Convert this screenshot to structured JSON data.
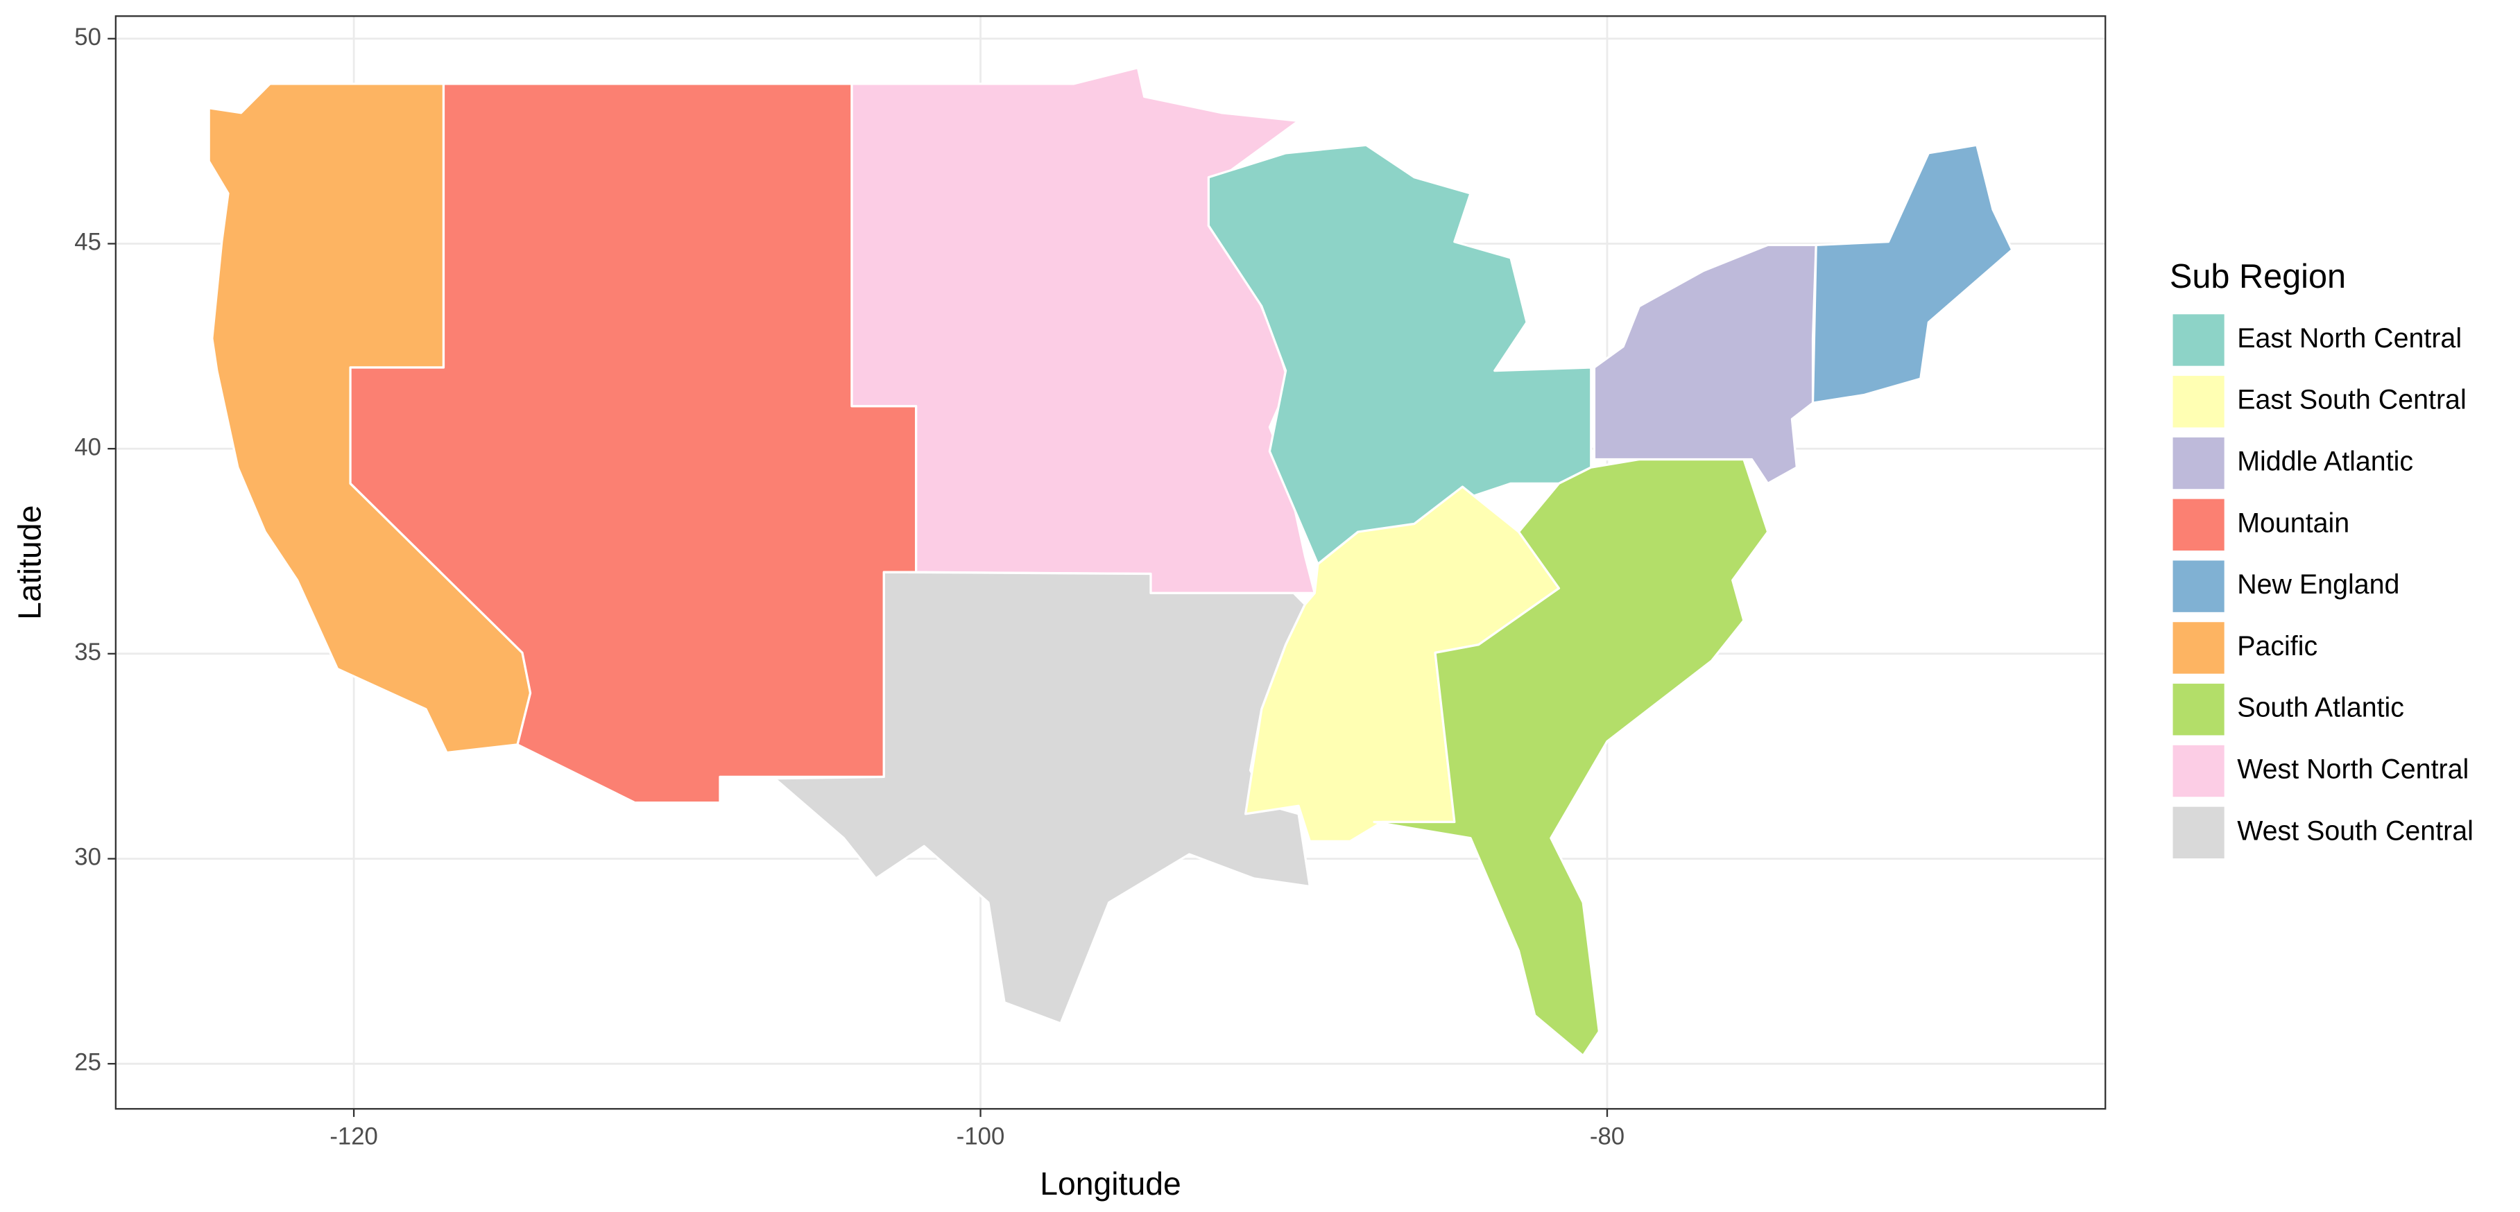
{
  "chart_data": {
    "type": "map",
    "xlabel": "Longitude",
    "ylabel": "Latitude",
    "legend_title": "Sub Region",
    "xlim": [
      -127.6,
      -64.1
    ],
    "ylim": [
      23.9,
      50.55
    ],
    "xticks": [
      -120,
      -100,
      -80
    ],
    "yticks": [
      25,
      30,
      35,
      40,
      45,
      50
    ],
    "grid": true,
    "legend_position": "right",
    "regions": [
      {
        "name": "East North Central",
        "color": "#8dd3c7"
      },
      {
        "name": "East South Central",
        "color": "#ffffb3"
      },
      {
        "name": "Middle Atlantic",
        "color": "#bebada"
      },
      {
        "name": "Mountain",
        "color": "#fb8072"
      },
      {
        "name": "New England",
        "color": "#80b1d3"
      },
      {
        "name": "Pacific",
        "color": "#fdb462"
      },
      {
        "name": "South Atlantic",
        "color": "#b3de69"
      },
      {
        "name": "West North Central",
        "color": "#fccde5"
      },
      {
        "name": "West South Central",
        "color": "#d9d9d9"
      }
    ]
  }
}
